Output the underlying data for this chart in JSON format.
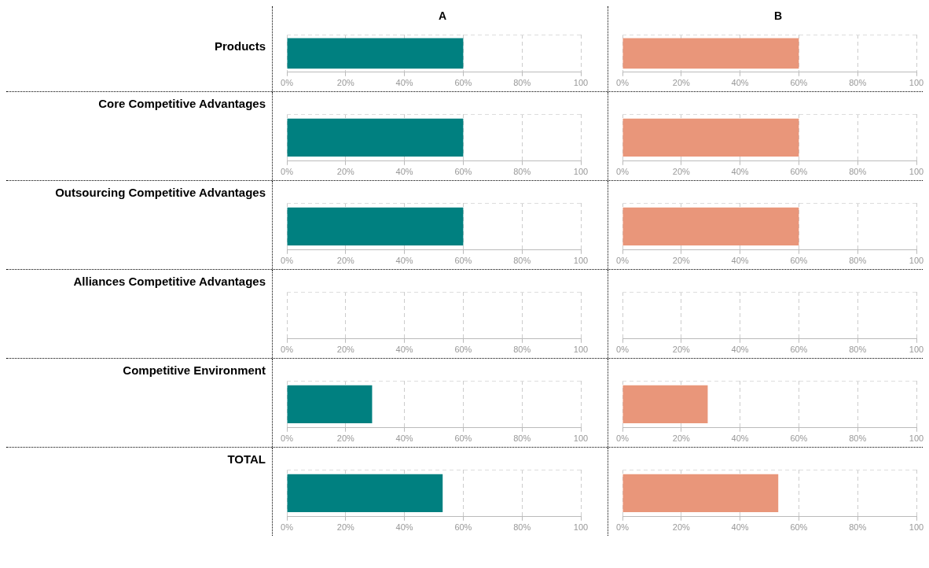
{
  "chart_data": [
    {
      "type": "bar",
      "orientation": "horizontal",
      "title": "Products",
      "subtitle": "A",
      "categories": [
        null
      ],
      "values": [
        60
      ],
      "color": "#008080",
      "xlim": [
        0,
        100
      ],
      "xticks": [
        {
          "value": 0,
          "label": "0%"
        },
        {
          "value": 20,
          "label": "20%"
        },
        {
          "value": 40,
          "label": "40%"
        },
        {
          "value": 60,
          "label": "60%"
        },
        {
          "value": 80,
          "label": "80%"
        },
        {
          "value": 100,
          "label": "100"
        }
      ],
      "grid": "x",
      "tick_labels": "x"
    },
    {
      "type": "bar",
      "orientation": "horizontal",
      "subtitle": "B",
      "categories": [
        null
      ],
      "values": [
        60
      ],
      "color": "#e9967a",
      "xlim": [
        0,
        100
      ],
      "xticks": [
        {
          "value": 0,
          "label": "0%"
        },
        {
          "value": 20,
          "label": "20%"
        },
        {
          "value": 40,
          "label": "40%"
        },
        {
          "value": 60,
          "label": "60%"
        },
        {
          "value": 80,
          "label": "80%"
        },
        {
          "value": 100,
          "label": "100"
        }
      ],
      "grid": "x",
      "tick_labels": "x"
    },
    {
      "type": "bar",
      "orientation": "horizontal",
      "title": "Core Competitive Advantages",
      "categories": [
        null
      ],
      "values": [
        60
      ],
      "color": "#008080",
      "xlim": [
        0,
        100
      ],
      "xticks": [
        {
          "value": 0,
          "label": "0%"
        },
        {
          "value": 20,
          "label": "20%"
        },
        {
          "value": 40,
          "label": "40%"
        },
        {
          "value": 60,
          "label": "60%"
        },
        {
          "value": 80,
          "label": "80%"
        },
        {
          "value": 100,
          "label": "100"
        }
      ],
      "grid": "x",
      "tick_labels": "x"
    },
    {
      "type": "bar",
      "orientation": "horizontal",
      "categories": [
        null
      ],
      "values": [
        60
      ],
      "color": "#e9967a",
      "xlim": [
        0,
        100
      ],
      "xticks": [
        {
          "value": 0,
          "label": "0%"
        },
        {
          "value": 20,
          "label": "20%"
        },
        {
          "value": 40,
          "label": "40%"
        },
        {
          "value": 60,
          "label": "60%"
        },
        {
          "value": 80,
          "label": "80%"
        },
        {
          "value": 100,
          "label": "100"
        }
      ],
      "grid": "x",
      "tick_labels": "x"
    },
    {
      "type": "bar",
      "orientation": "horizontal",
      "title": "Outsourcing Competitive Advantages",
      "categories": [
        null
      ],
      "values": [
        60
      ],
      "color": "#008080",
      "xlim": [
        0,
        100
      ],
      "xticks": [
        {
          "value": 0,
          "label": "0%"
        },
        {
          "value": 20,
          "label": "20%"
        },
        {
          "value": 40,
          "label": "40%"
        },
        {
          "value": 60,
          "label": "60%"
        },
        {
          "value": 80,
          "label": "80%"
        },
        {
          "value": 100,
          "label": "100"
        }
      ],
      "grid": "x",
      "tick_labels": "x"
    },
    {
      "type": "bar",
      "orientation": "horizontal",
      "categories": [
        null
      ],
      "values": [
        60
      ],
      "color": "#e9967a",
      "xlim": [
        0,
        100
      ],
      "xticks": [
        {
          "value": 0,
          "label": "0%"
        },
        {
          "value": 20,
          "label": "20%"
        },
        {
          "value": 40,
          "label": "40%"
        },
        {
          "value": 60,
          "label": "60%"
        },
        {
          "value": 80,
          "label": "80%"
        },
        {
          "value": 100,
          "label": "100"
        }
      ],
      "grid": "x",
      "tick_labels": "x"
    },
    {
      "type": "bar",
      "orientation": "horizontal",
      "title": "Alliances Competitive Advantages",
      "categories": [
        null
      ],
      "values": [
        0
      ],
      "color": "#008080",
      "xlim": [
        0,
        100
      ],
      "xticks": [
        {
          "value": 0,
          "label": "0%"
        },
        {
          "value": 20,
          "label": "20%"
        },
        {
          "value": 40,
          "label": "40%"
        },
        {
          "value": 60,
          "label": "60%"
        },
        {
          "value": 80,
          "label": "80%"
        },
        {
          "value": 100,
          "label": "100"
        }
      ],
      "grid": "x",
      "tick_labels": "x"
    },
    {
      "type": "bar",
      "orientation": "horizontal",
      "categories": [
        null
      ],
      "values": [
        0
      ],
      "color": "#e9967a",
      "xlim": [
        0,
        100
      ],
      "xticks": [
        {
          "value": 0,
          "label": "0%"
        },
        {
          "value": 20,
          "label": "20%"
        },
        {
          "value": 40,
          "label": "40%"
        },
        {
          "value": 60,
          "label": "60%"
        },
        {
          "value": 80,
          "label": "80%"
        },
        {
          "value": 100,
          "label": "100"
        }
      ],
      "grid": "x",
      "tick_labels": "x"
    },
    {
      "type": "bar",
      "orientation": "horizontal",
      "title": "Competitive Environment",
      "categories": [
        null
      ],
      "values": [
        29
      ],
      "color": "#008080",
      "xlim": [
        0,
        100
      ],
      "xticks": [
        {
          "value": 0,
          "label": "0%"
        },
        {
          "value": 20,
          "label": "20%"
        },
        {
          "value": 40,
          "label": "40%"
        },
        {
          "value": 60,
          "label": "60%"
        },
        {
          "value": 80,
          "label": "80%"
        },
        {
          "value": 100,
          "label": "100"
        }
      ],
      "grid": "x",
      "tick_labels": "x"
    },
    {
      "type": "bar",
      "orientation": "horizontal",
      "categories": [
        null
      ],
      "values": [
        29
      ],
      "color": "#e9967a",
      "xlim": [
        0,
        100
      ],
      "xticks": [
        {
          "value": 0,
          "label": "0%"
        },
        {
          "value": 20,
          "label": "20%"
        },
        {
          "value": 40,
          "label": "40%"
        },
        {
          "value": 60,
          "label": "60%"
        },
        {
          "value": 80,
          "label": "80%"
        },
        {
          "value": 100,
          "label": "100"
        }
      ],
      "grid": "x",
      "tick_labels": "x"
    },
    {
      "type": "bar",
      "orientation": "horizontal",
      "title": "TOTAL",
      "categories": [
        null
      ],
      "values": [
        53
      ],
      "color": "#008080",
      "xlim": [
        0,
        100
      ],
      "xticks": [
        {
          "value": 0,
          "label": "0%"
        },
        {
          "value": 20,
          "label": "20%"
        },
        {
          "value": 40,
          "label": "40%"
        },
        {
          "value": 60,
          "label": "60%"
        },
        {
          "value": 80,
          "label": "80%"
        },
        {
          "value": 100,
          "label": "100"
        }
      ],
      "grid": "x",
      "tick_labels": "x"
    },
    {
      "type": "bar",
      "orientation": "horizontal",
      "categories": [
        null
      ],
      "values": [
        53
      ],
      "color": "#e9967a",
      "xlim": [
        0,
        100
      ],
      "xticks": [
        {
          "value": 0,
          "label": "0%"
        },
        {
          "value": 20,
          "label": "20%"
        },
        {
          "value": 40,
          "label": "40%"
        },
        {
          "value": 60,
          "label": "60%"
        },
        {
          "value": 80,
          "label": "80%"
        },
        {
          "value": 100,
          "label": "100"
        }
      ],
      "grid": "x",
      "tick_labels": "x"
    }
  ]
}
